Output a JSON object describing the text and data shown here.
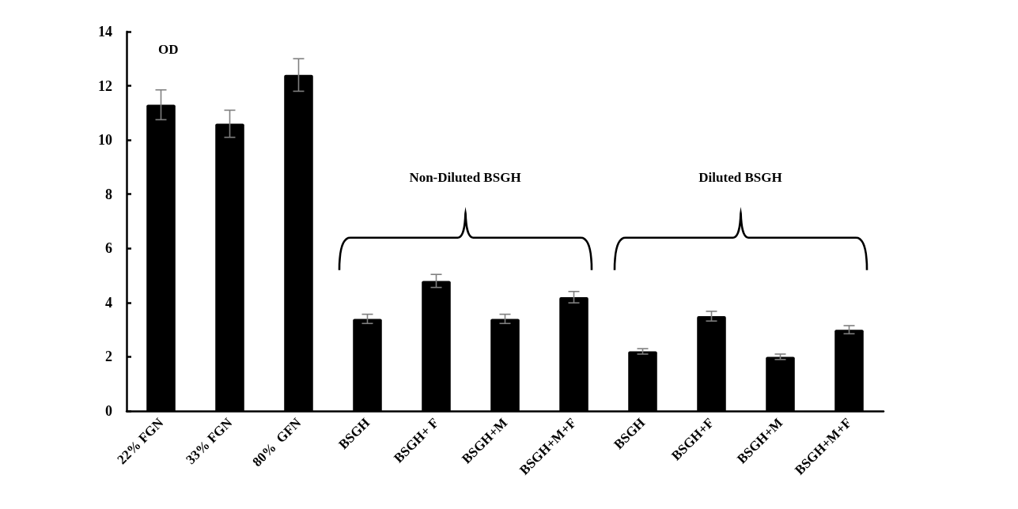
{
  "chart_data": {
    "type": "bar",
    "ylabel": "OD",
    "categories": [
      "22% FGN",
      "33% FGN",
      "80%  GFN",
      "BSGH",
      "BSGH+ F",
      "BSGH+M",
      "BSGH+M+F",
      "BSGH",
      "BSGH+F",
      "BSGH+M",
      "BSGH+M+F"
    ],
    "values": [
      11.3,
      10.6,
      12.4,
      3.4,
      4.8,
      3.4,
      4.2,
      2.2,
      3.5,
      2.0,
      3.0
    ],
    "errors": [
      0.55,
      0.5,
      0.6,
      0.17,
      0.24,
      0.17,
      0.21,
      0.1,
      0.18,
      0.1,
      0.15
    ],
    "color": "#000000",
    "ylim": [
      0,
      14
    ],
    "yticks": [
      0,
      2,
      4,
      6,
      8,
      10,
      12,
      14
    ],
    "annotations": [
      "Non-Diluted BSGH",
      "Diluted BSGH"
    ],
    "grid": false
  }
}
